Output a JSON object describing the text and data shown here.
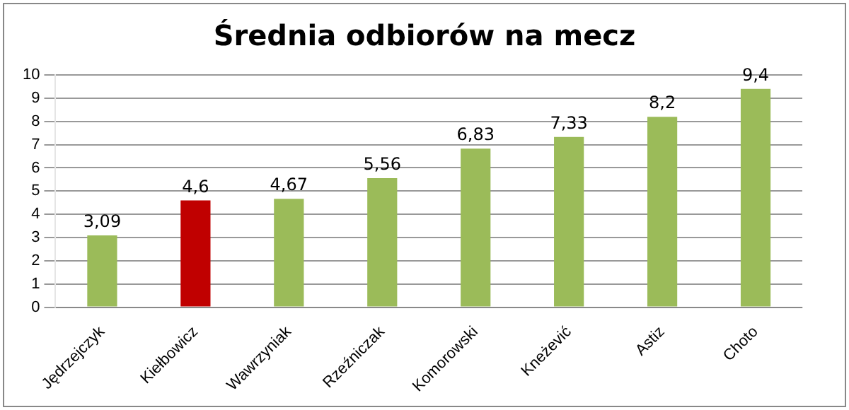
{
  "chart_data": {
    "type": "bar",
    "title": "Średnia odbiorów na mecz",
    "categories": [
      "Jędrzejczyk",
      "Kiełbowicz",
      "Wawrzyniak",
      "Rzeźniczak",
      "Komorowski",
      "Kneżević",
      "Astiz",
      "Choto"
    ],
    "values": [
      3.09,
      4.6,
      4.67,
      5.56,
      6.83,
      7.33,
      8.2,
      9.4
    ],
    "value_labels": [
      "3,09",
      "4,6",
      "4,67",
      "5,56",
      "6,83",
      "7,33",
      "8,2",
      "9,4"
    ],
    "colors": [
      "#9bbb59",
      "#c00000",
      "#9bbb59",
      "#9bbb59",
      "#9bbb59",
      "#9bbb59",
      "#9bbb59",
      "#9bbb59"
    ],
    "ylim": [
      0,
      10
    ],
    "yticks": [
      0,
      1,
      2,
      3,
      4,
      5,
      6,
      7,
      8,
      9,
      10
    ],
    "grid": "y",
    "legend": false
  }
}
